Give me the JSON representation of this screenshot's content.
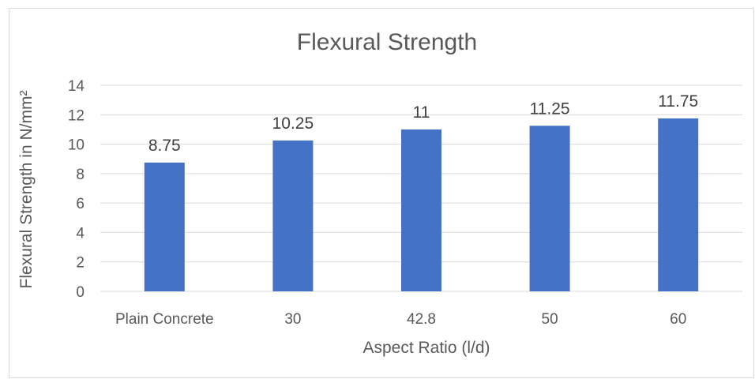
{
  "chart_data": {
    "type": "bar",
    "title": "Flexural Strength",
    "xlabel": "Aspect Ratio (l/d)",
    "ylabel": "Flexural Strength in N/mm²",
    "categories": [
      "Plain Concrete",
      "30",
      "42.8",
      "50",
      "60"
    ],
    "values": [
      8.75,
      10.25,
      11,
      11.25,
      11.75
    ],
    "data_labels": [
      "8.75",
      "10.25",
      "11",
      "11.25",
      "11.75"
    ],
    "ylim": [
      0,
      14
    ],
    "yticks": [
      0,
      2,
      4,
      6,
      8,
      10,
      12,
      14
    ],
    "grid": true,
    "legend": "none",
    "bar_color": "#4472C4"
  }
}
